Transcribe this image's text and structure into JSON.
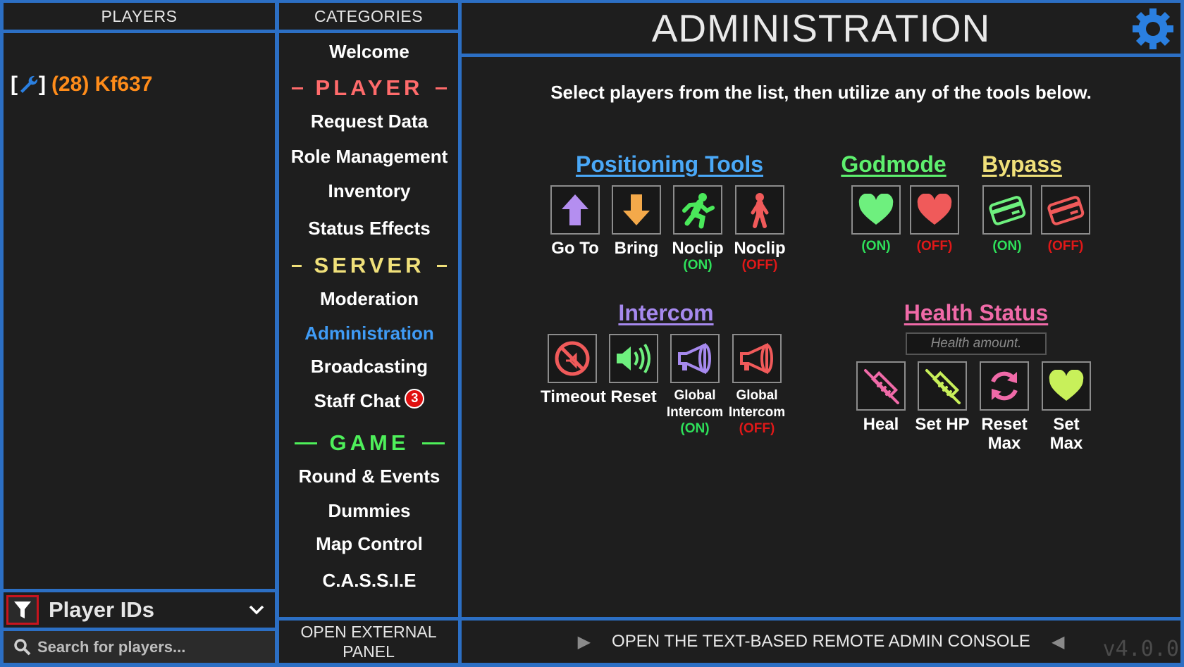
{
  "players_panel": {
    "header": "PLAYERS",
    "player": {
      "prefix": "[",
      "suffix": "]",
      "name": "(28) Kf637"
    },
    "filter": {
      "label": "Player IDs"
    },
    "search": {
      "placeholder": "Search for players..."
    }
  },
  "categories": {
    "header": "CATEGORIES",
    "welcome": "Welcome",
    "sections": {
      "player": "PLAYER",
      "server": "SERVER",
      "game": "GAME"
    },
    "player_items": [
      "Request Data",
      "Role Management",
      "Inventory",
      "Status Effects"
    ],
    "server_items": [
      "Moderation",
      "Administration",
      "Broadcasting",
      "Staff Chat"
    ],
    "staff_chat_badge": "3",
    "game_items": [
      "Round & Events",
      "Dummies",
      "Map Control",
      "C.A.S.S.I.E"
    ],
    "external_panel": "OPEN EXTERNAL PANEL"
  },
  "main": {
    "title": "ADMINISTRATION",
    "subtitle": "Select players from the list, then utilize any of the tools below.",
    "positioning": {
      "title": "Positioning Tools",
      "goto": "Go To",
      "bring": "Bring",
      "noclip": "Noclip",
      "on": "(ON)",
      "off": "(OFF)"
    },
    "godmode": {
      "title": "Godmode",
      "on": "(ON)",
      "off": "(OFF)"
    },
    "bypass": {
      "title": "Bypass",
      "on": "(ON)",
      "off": "(OFF)"
    },
    "intercom": {
      "title": "Intercom",
      "timeout": "Timeout",
      "reset": "Reset",
      "global": "Global",
      "intercom": "Intercom",
      "on": "(ON)",
      "off": "(OFF)"
    },
    "health": {
      "title": "Health Status",
      "placeholder": "Health amount.",
      "heal": "Heal",
      "sethp": "Set HP",
      "reset": "Reset",
      "max": "Max",
      "setmax": "Set Max"
    },
    "console": "OPEN THE TEXT-BASED REMOTE ADMIN CONSOLE",
    "version": "v4.0.0"
  },
  "colors": {
    "accent_blue": "#2c6fc4",
    "player_orange": "#ff8c1a",
    "section_player": "#ff6b6b",
    "section_server": "#f0e07a",
    "section_game": "#4ef05a",
    "positioning": "#4aa8f7",
    "godmode": "#5ef06e",
    "bypass": "#f0e07a",
    "intercom": "#a689ee",
    "health": "#f06aa8"
  }
}
